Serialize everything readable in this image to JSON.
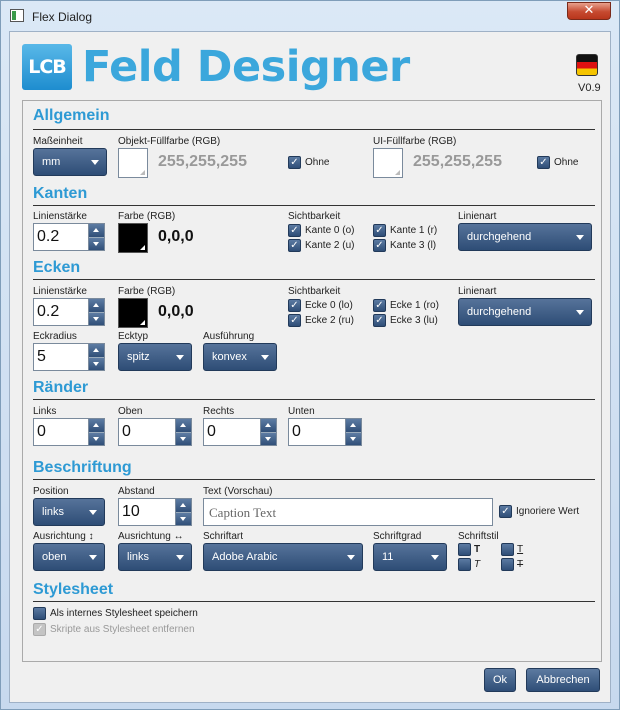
{
  "window": {
    "title": "Flex Dialog",
    "close_glyph": "✕"
  },
  "header": {
    "logo_text": "LCB",
    "title": "Feld Designer",
    "version": "V0.9"
  },
  "allgemein": {
    "heading": "Allgemein",
    "unit_label": "Maßeinheit",
    "unit_value": "mm",
    "obj_fill_label": "Objekt-Füllfarbe (RGB)",
    "obj_fill_value": "255,255,255",
    "obj_none_label": "Ohne",
    "ui_fill_label": "UI-Füllfarbe (RGB)",
    "ui_fill_value": "255,255,255",
    "ui_none_label": "Ohne"
  },
  "kanten": {
    "heading": "Kanten",
    "width_label": "Linienstärke",
    "width_value": "0.2",
    "color_label": "Farbe (RGB)",
    "color_value": "0,0,0",
    "vis_label": "Sichtbarkeit",
    "vis": [
      "Kante 0 (o)",
      "Kante 1 (r)",
      "Kante 2 (u)",
      "Kante 3 (l)"
    ],
    "line_label": "Linienart",
    "line_value": "durchgehend"
  },
  "ecken": {
    "heading": "Ecken",
    "width_label": "Linienstärke",
    "width_value": "0.2",
    "color_label": "Farbe (RGB)",
    "color_value": "0,0,0",
    "vis_label": "Sichtbarkeit",
    "vis": [
      "Ecke 0 (lo)",
      "Ecke 1 (ro)",
      "Ecke 2 (ru)",
      "Ecke 3 (lu)"
    ],
    "line_label": "Linienart",
    "line_value": "durchgehend",
    "radius_label": "Eckradius",
    "radius_value": "5",
    "type_label": "Ecktyp",
    "type_value": "spitz",
    "style_label": "Ausführung",
    "style_value": "konvex"
  },
  "raender": {
    "heading": "Ränder",
    "fields": [
      {
        "label": "Links",
        "value": "0"
      },
      {
        "label": "Oben",
        "value": "0"
      },
      {
        "label": "Rechts",
        "value": "0"
      },
      {
        "label": "Unten",
        "value": "0"
      }
    ]
  },
  "beschriftung": {
    "heading": "Beschriftung",
    "pos_label": "Position",
    "pos_value": "links",
    "dist_label": "Abstand",
    "dist_value": "10",
    "text_label": "Text (Vorschau)",
    "text_value": "Caption Text",
    "ignore_label": "Ignoriere Wert",
    "valign_label": "Ausrichtung ↕",
    "valign_value": "oben",
    "halign_label": "Ausrichtung ↔",
    "halign_value": "links",
    "font_label": "Schriftart",
    "font_value": "Adobe Arabic",
    "size_label": "Schriftgrad",
    "size_value": "11",
    "style_label": "Schriftstil",
    "style_glyphs": [
      "T",
      "T",
      "T",
      "T"
    ]
  },
  "stylesheet": {
    "heading": "Stylesheet",
    "save_label": "Als internes Stylesheet speichern",
    "remove_label": "Skripte aus Stylesheet entfernen"
  },
  "footer": {
    "ok_label": "Ok",
    "cancel_label": "Abbrechen"
  },
  "colors": {
    "accent": "#3ba7dc",
    "control": "#3a5a84"
  }
}
